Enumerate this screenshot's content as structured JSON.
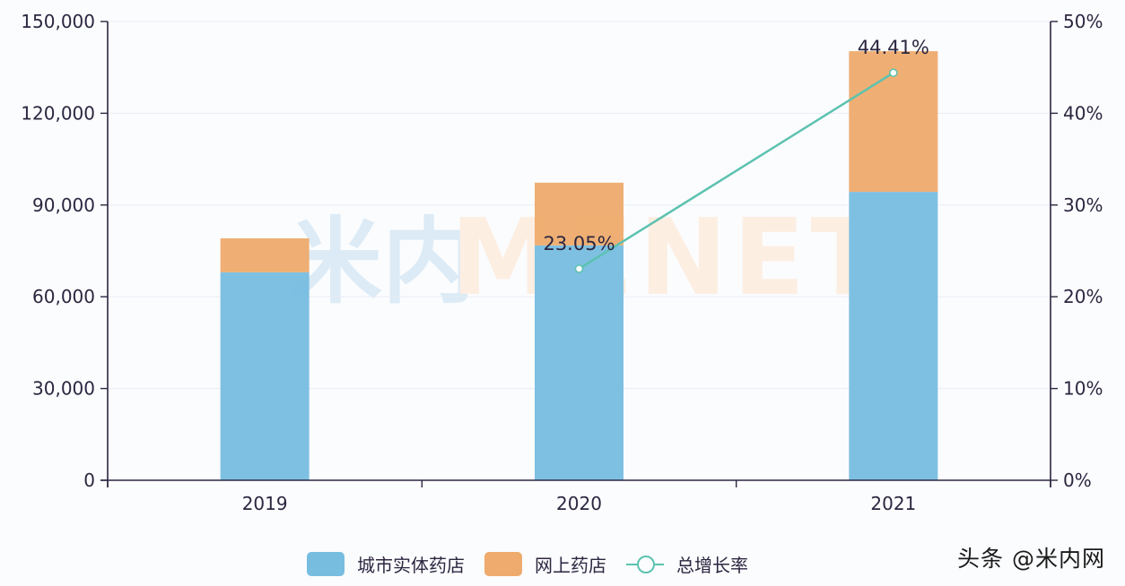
{
  "chart_data": {
    "type": "bar",
    "stacked": true,
    "title": "",
    "categories": [
      "2019",
      "2020",
      "2021"
    ],
    "series": [
      {
        "name": "城市实体药店",
        "type": "bar",
        "axis": "left",
        "color": "#77bde0",
        "values": [
          68000,
          76800,
          94300
        ]
      },
      {
        "name": "网上药店",
        "type": "bar",
        "axis": "left",
        "color": "#eeab6d",
        "values": [
          11100,
          20500,
          46000
        ]
      },
      {
        "name": "总增长率",
        "type": "line",
        "axis": "right",
        "color": "#5cc2b0",
        "values": [
          null,
          23.05,
          44.41
        ],
        "labels": [
          "",
          "23.05%",
          "44.41%"
        ]
      }
    ],
    "totals": [
      79100,
      97300,
      140300
    ],
    "ylabel": "",
    "ylim": [
      0,
      150000
    ],
    "y_ticks": [
      "0",
      "30,000",
      "60,000",
      "90,000",
      "120,000",
      "150,000"
    ],
    "y2lim": [
      0,
      50
    ],
    "y2_ticks": [
      "0%",
      "10%",
      "20%",
      "30%",
      "40%",
      "50%"
    ],
    "grid": true,
    "legend_position": "bottom"
  },
  "legend": {
    "items": [
      {
        "label": "城市实体药店",
        "color": "#77bde0"
      },
      {
        "label": "网上药店",
        "color": "#eeab6d"
      },
      {
        "label": "总增长率",
        "color": "#5cc2b0"
      }
    ]
  },
  "watermark": {
    "cn": "米内",
    "en": "MENET",
    "credit": "头条 @米内网"
  }
}
